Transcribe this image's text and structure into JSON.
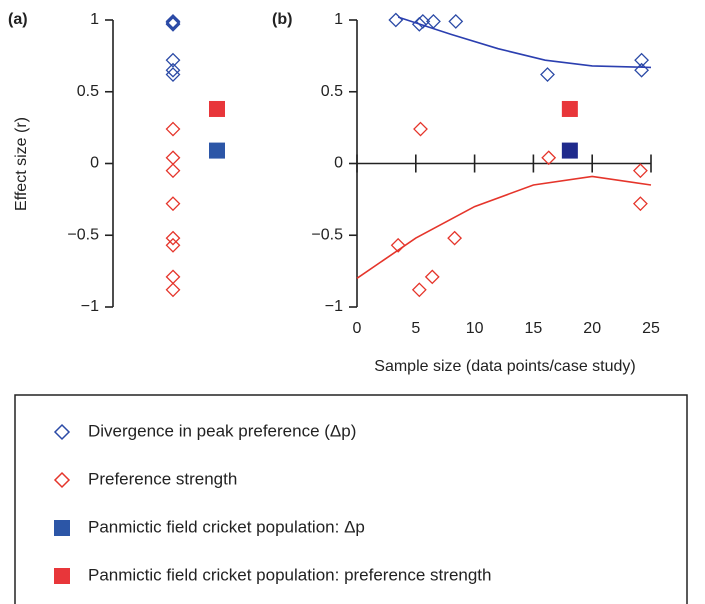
{
  "chart_data": [
    {
      "type": "strip",
      "title": "(a)",
      "ylabel": "Effect size (r)",
      "ylim": [
        -1,
        1
      ],
      "yticks": [
        {
          "value": -1,
          "label": "−1"
        },
        {
          "value": -0.5,
          "label": "−0.5"
        },
        0,
        0.5,
        1
      ],
      "legend": "bottom",
      "series": [
        {
          "name": "Divergence in peak preference (Δp)",
          "color": "#2b4aa6",
          "marker": "diamond",
          "values": [
            0.99,
            0.98,
            0.97,
            0.72,
            0.65,
            0.62
          ]
        },
        {
          "name": "Preference strength",
          "color": "#e5352b",
          "marker": "diamond",
          "values": [
            0.24,
            0.04,
            -0.05,
            -0.28,
            -0.52,
            -0.57,
            -0.79,
            -0.88
          ]
        },
        {
          "name": "Panmictic field cricket population: Δp",
          "color": "#2c56a7",
          "marker": "square",
          "values": [
            0.09
          ]
        },
        {
          "name": "Panmictic field cricket population:  preference strength",
          "color": "#e8363a",
          "marker": "square",
          "values": [
            0.38
          ]
        }
      ]
    },
    {
      "type": "scatter",
      "title": "(b)",
      "xlabel": "Sample size (data points/case study)",
      "xlim": [
        0,
        25
      ],
      "xticks": [
        0,
        5,
        10,
        15,
        20,
        25
      ],
      "ylim": [
        -1,
        1
      ],
      "yticks": [
        {
          "value": -1,
          "label": "−1"
        },
        {
          "value": -0.5,
          "label": "−0.5"
        },
        0,
        0.5,
        1
      ],
      "series": [
        {
          "color": "#2b4aa6",
          "marker": "diamond",
          "x": [
            3.3,
            5.3,
            5.6,
            6.5,
            8.4,
            16.2,
            24.2,
            24.2
          ],
          "values": [
            1.0,
            0.97,
            0.99,
            0.99,
            0.99,
            0.62,
            0.72,
            0.65
          ]
        },
        {
          "color": "#e5352b",
          "marker": "diamond",
          "x": [
            3.5,
            5.4,
            5.3,
            6.4,
            8.3,
            16.3,
            24.1,
            24.1
          ],
          "values": [
            -0.57,
            0.24,
            -0.88,
            -0.79,
            -0.52,
            0.04,
            -0.05,
            -0.28
          ]
        },
        {
          "color": "#1f2a8c",
          "marker": "square",
          "x": [
            18.1
          ],
          "values": [
            0.09
          ]
        },
        {
          "color": "#e8363a",
          "marker": "square",
          "x": [
            18.1
          ],
          "values": [
            0.38
          ]
        },
        {
          "color": "#2b3fb0",
          "marker": "line",
          "x": [
            3.5,
            8,
            12,
            16,
            20,
            25
          ],
          "values": [
            1.02,
            0.9,
            0.8,
            0.72,
            0.68,
            0.67
          ]
        },
        {
          "color": "#e5352b",
          "marker": "line",
          "x": [
            0,
            5,
            10,
            15,
            20,
            25
          ],
          "values": [
            -0.8,
            -0.52,
            -0.3,
            -0.15,
            -0.09,
            -0.15
          ]
        }
      ]
    }
  ]
}
